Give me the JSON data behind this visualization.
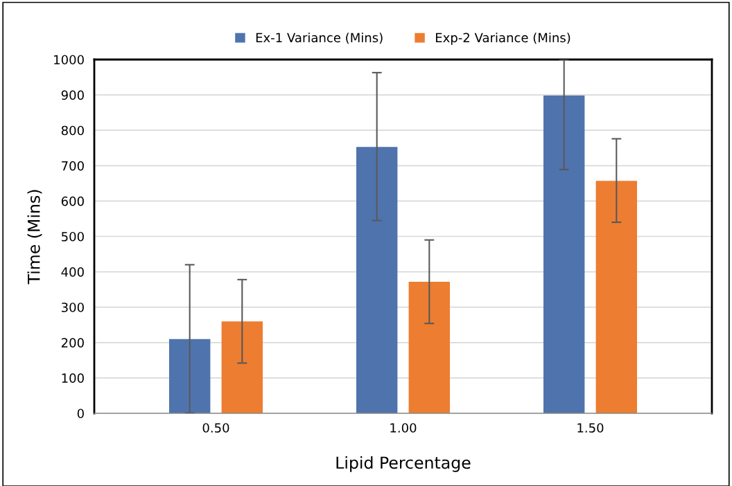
{
  "chart_data": {
    "type": "bar",
    "xlabel": "Lipid Percentage",
    "ylabel": "Time (Mins)",
    "categories": [
      "0.50",
      "1.00",
      "1.50"
    ],
    "series": [
      {
        "name": "Ex-1 Variance (Mins)",
        "color": "#4f73ad",
        "values": [
          210,
          753,
          898
        ],
        "errors": [
          [
            0,
            420
          ],
          [
            545,
            963
          ],
          [
            689,
            1000
          ]
        ]
      },
      {
        "name": "Exp-2 Variance (Mins)",
        "color": "#ed7d31",
        "values": [
          260,
          372,
          657
        ],
        "errors": [
          [
            142,
            378
          ],
          [
            254,
            490
          ],
          [
            540,
            776
          ]
        ]
      }
    ],
    "ylim": [
      0,
      1000
    ],
    "yticks": [
      0,
      100,
      200,
      300,
      400,
      500,
      600,
      700,
      800,
      900,
      1000
    ],
    "grid": "y",
    "legend": "top"
  }
}
